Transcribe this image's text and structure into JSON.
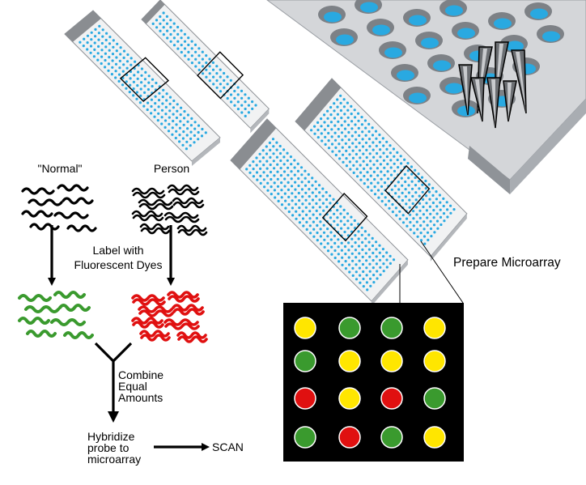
{
  "labels": {
    "normal": "\"Normal\"",
    "person": "Person",
    "label_line1": "Label with",
    "label_line2": "Fluorescent Dyes",
    "combine_line1": "Combine",
    "combine_line2": "Equal",
    "combine_line3": "Amounts",
    "hybridize_line1": "Hybridize",
    "hybridize_line2": "probe to",
    "hybridize_line3": "microarray",
    "scan": "SCAN",
    "prepare": "Prepare Microarray"
  },
  "colors": {
    "spot_blue": "#29a9e1",
    "well_blue": "#29a9e1",
    "plate_gray": "#d4d6d9",
    "green": "#3a9a2e",
    "red": "#e01010",
    "yellow": "#ffe600",
    "black": "#000000"
  },
  "zoom_grid": [
    [
      "yellow",
      "green",
      "green",
      "yellow"
    ],
    [
      "green",
      "yellow",
      "yellow",
      "yellow"
    ],
    [
      "red",
      "yellow",
      "red",
      "green"
    ],
    [
      "green",
      "red",
      "green",
      "yellow"
    ]
  ]
}
